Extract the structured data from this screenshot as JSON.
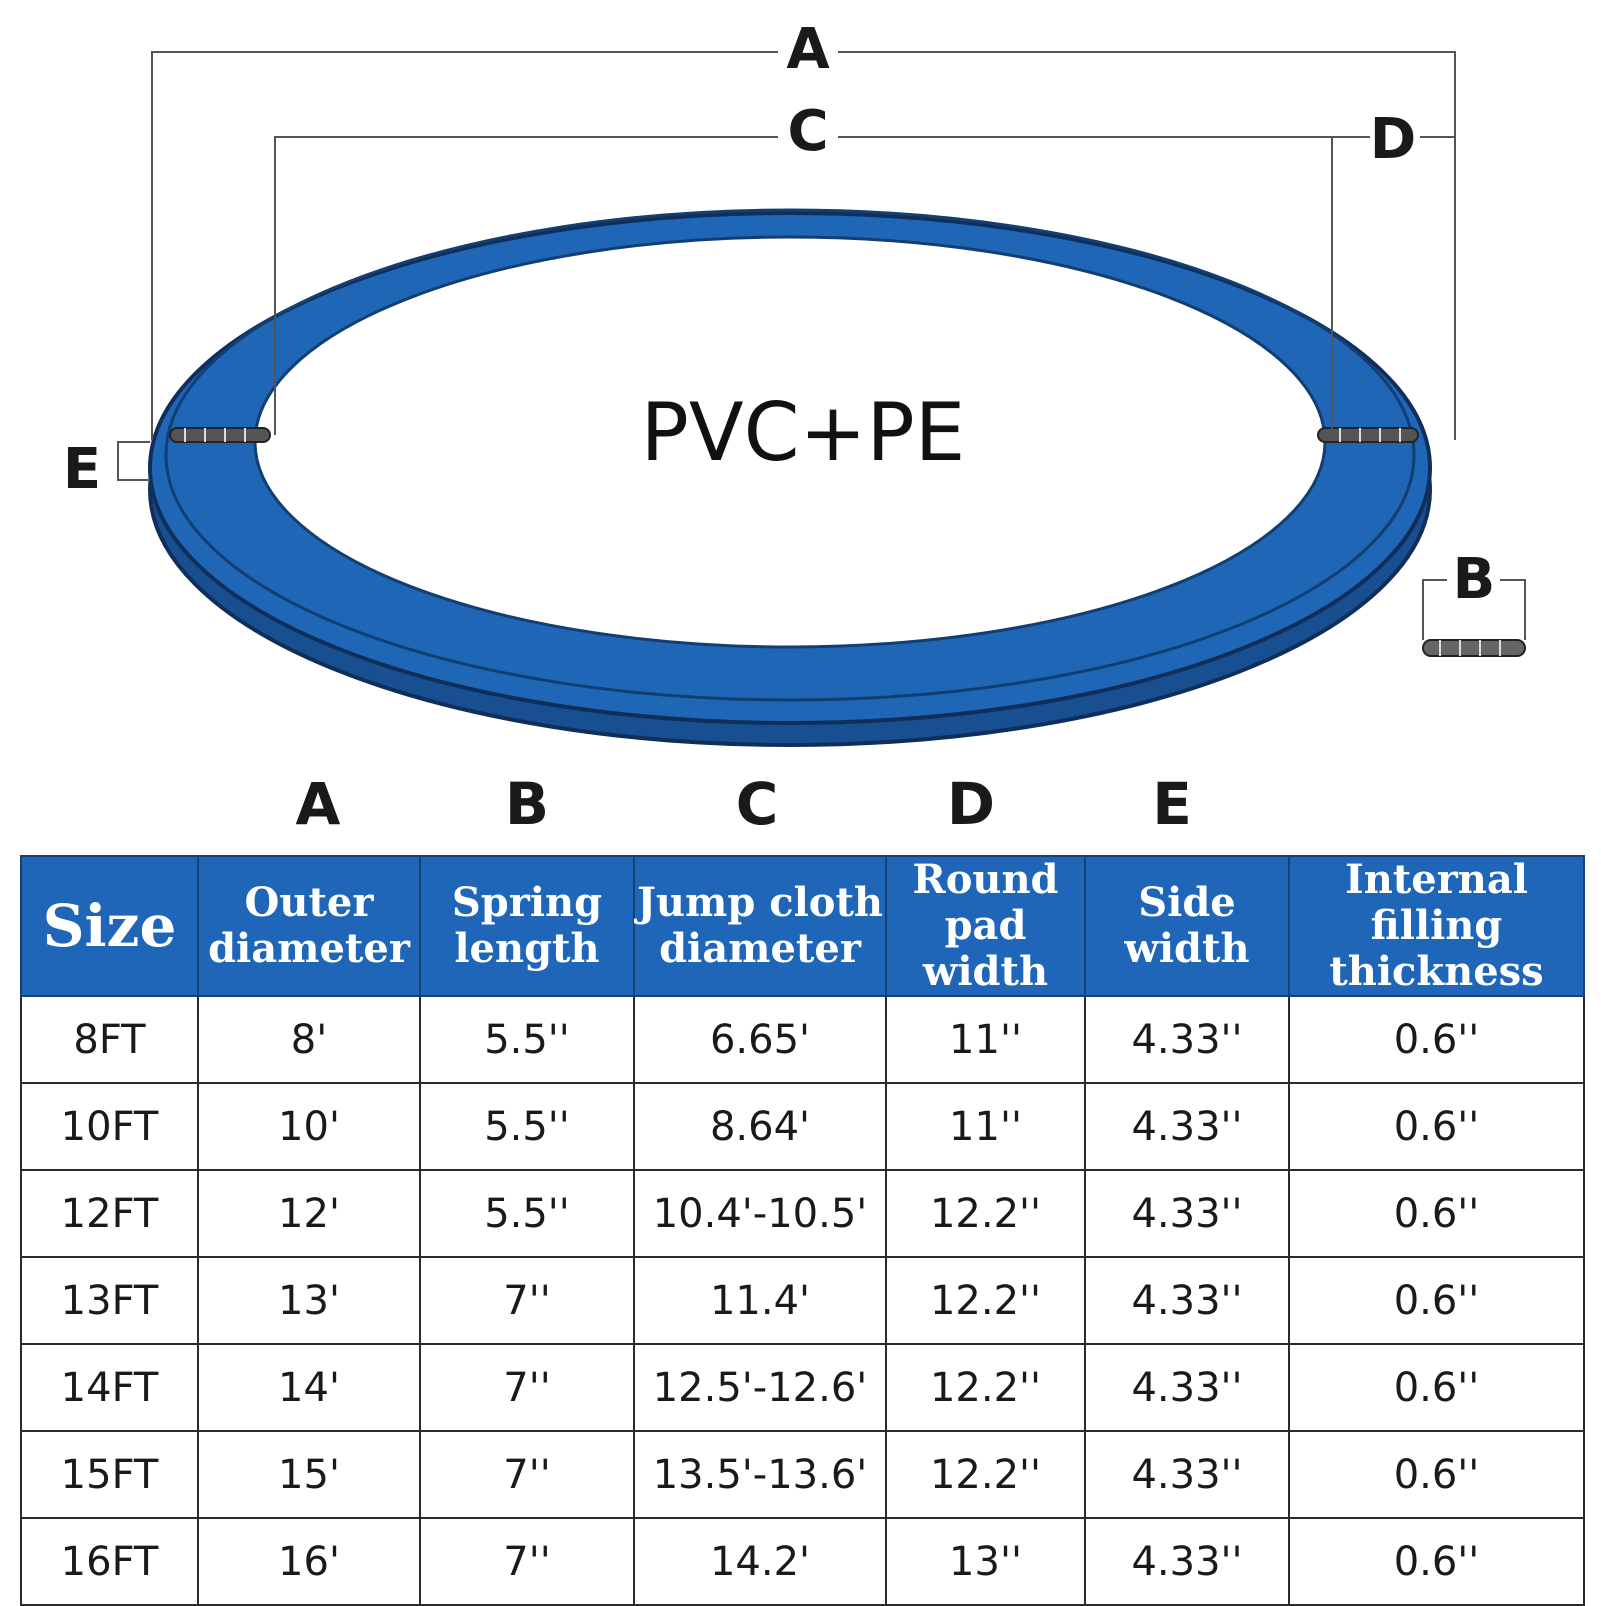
{
  "diagram": {
    "material_label": "PVC+PE",
    "dimension_letters": {
      "a": "A",
      "b": "B",
      "c": "C",
      "d": "D",
      "e": "E"
    },
    "colors": {
      "pad": "#1f67b6",
      "pad_dark": "#174f90",
      "outline": "#0f2f5a"
    }
  },
  "table": {
    "column_letters": [
      "A",
      "B",
      "C",
      "D",
      "E"
    ],
    "headers": {
      "size": "Size",
      "outer_diameter": [
        "Outer",
        "diameter"
      ],
      "spring_length": [
        "Spring",
        "length"
      ],
      "jump_cloth": [
        "Jump cloth",
        "diameter"
      ],
      "round_pad": [
        "Round",
        "pad width"
      ],
      "side_width": [
        "Side",
        "width"
      ],
      "filling": [
        "Internal filling",
        "thickness"
      ]
    },
    "rows": [
      [
        "8FT",
        "8'",
        "5.5''",
        "6.65'",
        "11''",
        "4.33''",
        "0.6''"
      ],
      [
        "10FT",
        "10'",
        "5.5''",
        "8.64'",
        "11''",
        "4.33''",
        "0.6''"
      ],
      [
        "12FT",
        "12'",
        "5.5''",
        "10.4'-10.5'",
        "12.2''",
        "4.33''",
        "0.6''"
      ],
      [
        "13FT",
        "13'",
        "7''",
        "11.4'",
        "12.2''",
        "4.33''",
        "0.6''"
      ],
      [
        "14FT",
        "14'",
        "7''",
        "12.5'-12.6'",
        "12.2''",
        "4.33''",
        "0.6''"
      ],
      [
        "15FT",
        "15'",
        "7''",
        "13.5'-13.6'",
        "12.2''",
        "4.33''",
        "0.6''"
      ],
      [
        "16FT",
        "16'",
        "7''",
        "14.2'",
        "13''",
        "4.33''",
        "0.6''"
      ]
    ],
    "colors": {
      "header_bg": "#1f66b8",
      "header_text": "#ffffff"
    }
  }
}
